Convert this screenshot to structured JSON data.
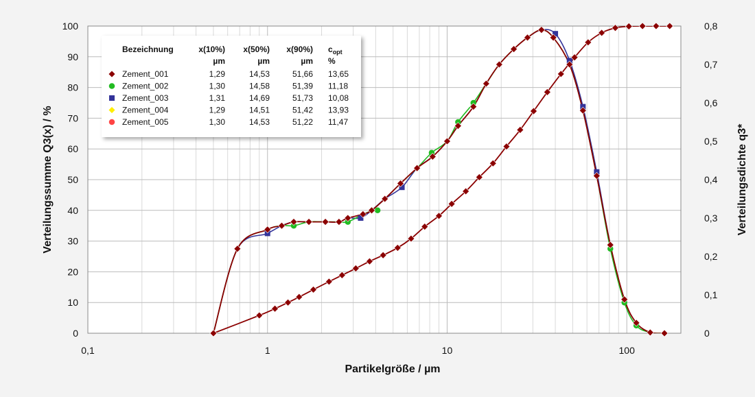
{
  "chart_data": {
    "type": "line",
    "title": "",
    "xlabel": "Partikelgröße / µm",
    "ylabel": "Verteilungssumme Q3(x) / %",
    "y2label": "Verteilungsdichte q3*",
    "xscale": "log",
    "xlim": [
      0.1,
      200
    ],
    "ylim": [
      0,
      100
    ],
    "y2lim": [
      0,
      0.8
    ],
    "x_ticks": [
      {
        "value": 0.1,
        "label": "0,1"
      },
      {
        "value": 1,
        "label": "1"
      },
      {
        "value": 10,
        "label": "10"
      },
      {
        "value": 100,
        "label": "100"
      }
    ],
    "y_ticks": [
      {
        "value": 0,
        "label": "0"
      },
      {
        "value": 10,
        "label": "10"
      },
      {
        "value": 20,
        "label": "20"
      },
      {
        "value": 30,
        "label": "30"
      },
      {
        "value": 40,
        "label": "40"
      },
      {
        "value": 50,
        "label": "50"
      },
      {
        "value": 60,
        "label": "60"
      },
      {
        "value": 70,
        "label": "70"
      },
      {
        "value": 80,
        "label": "80"
      },
      {
        "value": 90,
        "label": "90"
      },
      {
        "value": 100,
        "label": "100"
      }
    ],
    "y2_ticks": [
      {
        "value": 0,
        "label": "0"
      },
      {
        "value": 0.1,
        "label": "0,1"
      },
      {
        "value": 0.2,
        "label": "0,2"
      },
      {
        "value": 0.3,
        "label": "0,3"
      },
      {
        "value": 0.4,
        "label": "0,4"
      },
      {
        "value": 0.5,
        "label": "0,5"
      },
      {
        "value": 0.6,
        "label": "0,6"
      },
      {
        "value": 0.7,
        "label": "0,7"
      },
      {
        "value": 0.8,
        "label": "0,8"
      }
    ],
    "grid": true,
    "legend_placement": "top-left",
    "legend_headers": {
      "name": "Bezeichnung",
      "x10": "x(10%)",
      "x10_unit": "µm",
      "x50": "x(50%)",
      "x50_unit": "µm",
      "x90": "x(90%)",
      "x90_unit": "µm",
      "copt": "c",
      "copt_sub": "opt",
      "copt_unit": "%"
    },
    "series": [
      {
        "name": "Zement_001",
        "color": "#8b0000",
        "marker": "diamond",
        "x10": "1,29",
        "x50": "14,53",
        "x90": "51,66",
        "copt": "13,65",
        "q3_points": [
          [
            0.5,
            0
          ],
          [
            0.9,
            5.8
          ],
          [
            1.1,
            8
          ],
          [
            1.3,
            10
          ],
          [
            1.5,
            11.8
          ],
          [
            1.8,
            14.2
          ],
          [
            2.2,
            16.8
          ],
          [
            2.6,
            18.9
          ],
          [
            3.1,
            21.1
          ],
          [
            3.7,
            23.4
          ],
          [
            4.4,
            25.4
          ],
          [
            5.3,
            27.8
          ],
          [
            6.3,
            30.8
          ],
          [
            7.5,
            34.7
          ],
          [
            9,
            38.2
          ],
          [
            10.6,
            42.1
          ],
          [
            12.7,
            46.2
          ],
          [
            15.1,
            50.8
          ],
          [
            18,
            55.3
          ],
          [
            21.4,
            60.8
          ],
          [
            25.5,
            66.2
          ],
          [
            30.3,
            72.3
          ],
          [
            36.1,
            78.5
          ],
          [
            43,
            84.4
          ],
          [
            51.2,
            89.8
          ],
          [
            60.9,
            94.7
          ],
          [
            72.5,
            97.8
          ],
          [
            86.3,
            99.4
          ],
          [
            102.7,
            99.9
          ],
          [
            122.3,
            100
          ],
          [
            145.6,
            100
          ],
          [
            173.3,
            100
          ]
        ],
        "q3_density_points": [
          [
            0.5,
            0
          ],
          [
            0.68,
            0.22
          ],
          [
            1,
            0.27
          ],
          [
            1.2,
            0.28
          ],
          [
            1.4,
            0.29
          ],
          [
            1.7,
            0.29
          ],
          [
            2.1,
            0.29
          ],
          [
            2.5,
            0.29
          ],
          [
            2.8,
            0.3
          ],
          [
            3.4,
            0.31
          ],
          [
            3.8,
            0.32
          ],
          [
            4.5,
            0.35
          ],
          [
            5.5,
            0.39
          ],
          [
            6.8,
            0.43
          ],
          [
            8.3,
            0.46
          ],
          [
            10,
            0.5
          ],
          [
            11.5,
            0.54
          ],
          [
            14,
            0.59
          ],
          [
            16.5,
            0.65
          ],
          [
            19.5,
            0.7
          ],
          [
            23.5,
            0.74
          ],
          [
            28,
            0.77
          ],
          [
            33.5,
            0.79
          ],
          [
            39,
            0.77
          ],
          [
            48,
            0.7
          ],
          [
            57,
            0.58
          ],
          [
            68,
            0.41
          ],
          [
            81,
            0.23
          ],
          [
            97,
            0.088
          ],
          [
            113,
            0.027
          ],
          [
            135,
            0.002
          ],
          [
            162,
            0
          ]
        ]
      },
      {
        "name": "Zement_002",
        "color": "#22bb22",
        "marker": "circle",
        "x10": "1,30",
        "x50": "14,58",
        "x90": "51,39",
        "copt": "11,18",
        "q3_density_points": [
          [
            1.4,
            0.28
          ],
          [
            2.8,
            0.29
          ],
          [
            4.1,
            0.32
          ],
          [
            8.2,
            0.47
          ],
          [
            11.5,
            0.55
          ],
          [
            14,
            0.6
          ],
          [
            81,
            0.22
          ],
          [
            97,
            0.08
          ],
          [
            113,
            0.02
          ]
        ]
      },
      {
        "name": "Zement_003",
        "color": "#333399",
        "marker": "square",
        "x10": "1,31",
        "x50": "14,69",
        "x90": "51,73",
        "copt": "10,08",
        "q3_density_points": [
          [
            1,
            0.26
          ],
          [
            3.3,
            0.3
          ],
          [
            5.6,
            0.38
          ],
          [
            40,
            0.78
          ],
          [
            48,
            0.71
          ],
          [
            57,
            0.59
          ],
          [
            68,
            0.42
          ]
        ]
      },
      {
        "name": "Zement_004",
        "color": "#ffee00",
        "marker": "diamond",
        "x10": "1,29",
        "x50": "14,51",
        "x90": "51,42",
        "copt": "13,93"
      },
      {
        "name": "Zement_005",
        "color": "#ff4444",
        "marker": "circle",
        "x10": "1,30",
        "x50": "14,53",
        "x90": "51,22",
        "copt": "11,47"
      }
    ]
  }
}
